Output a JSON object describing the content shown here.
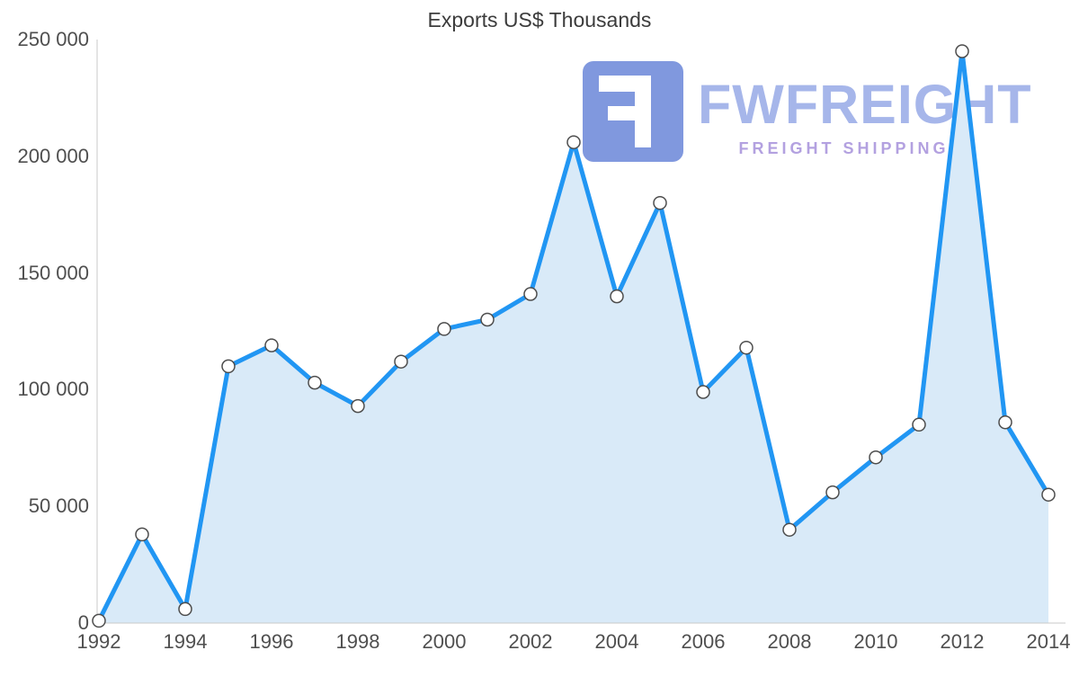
{
  "chart_data": {
    "type": "area",
    "title": "Exports US$ Thousands",
    "x": [
      1992,
      1993,
      1994,
      1995,
      1996,
      1997,
      1998,
      1999,
      2000,
      2001,
      2002,
      2003,
      2004,
      2005,
      2006,
      2007,
      2008,
      2009,
      2010,
      2011,
      2012,
      2013,
      2014
    ],
    "values": [
      1000,
      38000,
      6000,
      110000,
      119000,
      103000,
      93000,
      112000,
      126000,
      130000,
      141000,
      206000,
      140000,
      180000,
      99000,
      118000,
      40000,
      56000,
      71000,
      85000,
      245000,
      86000,
      55000
    ],
    "ylim": [
      0,
      250000
    ],
    "ytick_labels": [
      "0",
      "50 000",
      "100 000",
      "150 000",
      "200 000",
      "250 000"
    ],
    "xtick_labels": [
      "1992",
      "1994",
      "1996",
      "1998",
      "2000",
      "2002",
      "2004",
      "2006",
      "2008",
      "2010",
      "2012",
      "2014"
    ],
    "grid": false,
    "legend": "none",
    "colors": {
      "line": "#2196f3",
      "area_fill": "#d9eaf8",
      "marker_fill": "#ffffff",
      "marker_stroke": "#4d4d4d",
      "axis_line": "#c9c9c9",
      "tick_text": "#4f4f4f",
      "title_text": "#3c3c3c"
    }
  },
  "watermark": {
    "brand": "FWFREIGHT",
    "subtitle": "FREIGHT SHIPPING",
    "icon": "turned-F-logo-icon",
    "colors": {
      "icon_bg": "#8098de",
      "icon_glyph": "#ffffff",
      "brand_text": "#a6b6ea",
      "subtitle_text": "#b3a1e0"
    }
  }
}
